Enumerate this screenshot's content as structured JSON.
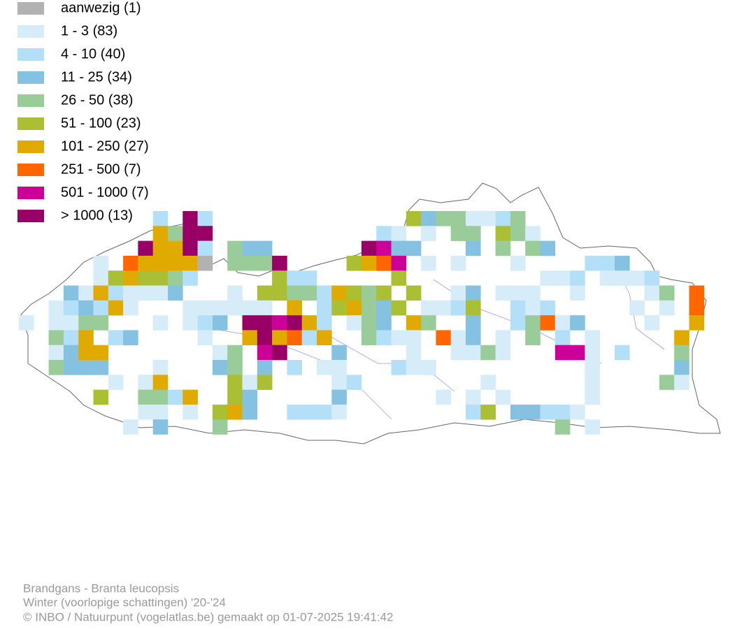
{
  "legend": {
    "items": [
      {
        "label": "aanwezig (1)",
        "color": "#b2b2b2"
      },
      {
        "label": "1 - 3 (83)",
        "color": "#d6ecf8"
      },
      {
        "label": "4 - 10 (40)",
        "color": "#b3e0f8"
      },
      {
        "label": "11 - 25 (34)",
        "color": "#85c1e0"
      },
      {
        "label": "26 - 50 (38)",
        "color": "#99cc99"
      },
      {
        "label": "51 - 100 (23)",
        "color": "#aabf33"
      },
      {
        "label": "101 - 250 (27)",
        "color": "#e0aa00"
      },
      {
        "label": "251 - 500 (7)",
        "color": "#ff6600"
      },
      {
        "label": "501 - 1000 (7)",
        "color": "#cc0099"
      },
      {
        "label": "> 1000 (13)",
        "color": "#990066"
      }
    ]
  },
  "footer": {
    "lines": [
      "Brandgans - Branta leucopsis",
      "Winter (voorlopige schattingen) '20-'24",
      "© INBO / Natuurpunt (vogelatlas.be) gemaakt op 01-07-2025 19:41:42"
    ]
  }
}
